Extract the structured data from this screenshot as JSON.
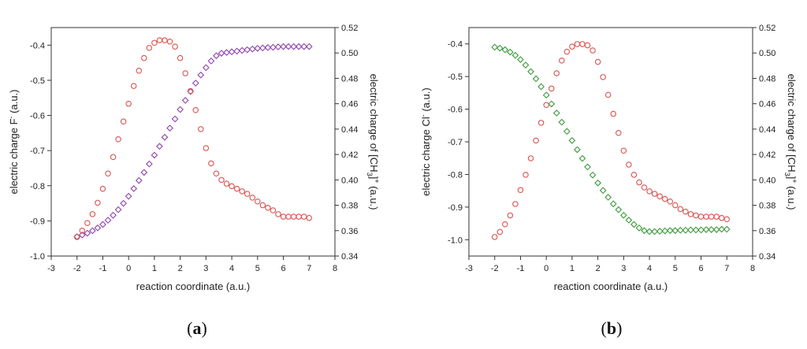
{
  "colors": {
    "red": "#d9534f",
    "purple": "#8e44ad",
    "green": "#3c9a3c",
    "axis": "#333333"
  },
  "chart_data": [
    {
      "type": "scatter",
      "panel_label": "a",
      "xlabel": "reaction coordinate (a.u.)",
      "ylabel_left": "electric charge F (a.u.)",
      "ylabel_left_sup": "-",
      "ylabel_right_prefix": "electric charge of [CH",
      "ylabel_right_sub": "3",
      "ylabel_right_suffix": "] (a.u.)",
      "ylabel_right_sup": "+",
      "xlim": [
        -3,
        8
      ],
      "ylim_left": [
        -1.0,
        -0.35
      ],
      "ylim_right": [
        0.34,
        0.52
      ],
      "xticks": [
        "-3",
        "-2",
        "-1",
        "0",
        "1",
        "2",
        "3",
        "4",
        "5",
        "6",
        "7",
        "8"
      ],
      "yticks_left": [
        "-1.0",
        "-0.9",
        "-0.8",
        "-0.7",
        "-0.6",
        "-0.5",
        "-0.4"
      ],
      "yticks_right": [
        "0.34",
        "0.36",
        "0.38",
        "0.40",
        "0.42",
        "0.44",
        "0.46",
        "0.48",
        "0.50",
        "0.52"
      ],
      "series": [
        {
          "axis": "left",
          "marker": "diamond",
          "color": "purple",
          "points": [
            [
              -2.0,
              -0.945
            ],
            [
              -1.8,
              -0.94
            ],
            [
              -1.6,
              -0.935
            ],
            [
              -1.4,
              -0.928
            ],
            [
              -1.2,
              -0.92
            ],
            [
              -1.0,
              -0.91
            ],
            [
              -0.8,
              -0.898
            ],
            [
              -0.6,
              -0.884
            ],
            [
              -0.4,
              -0.868
            ],
            [
              -0.2,
              -0.85
            ],
            [
              0.0,
              -0.83
            ],
            [
              0.2,
              -0.808
            ],
            [
              0.4,
              -0.785
            ],
            [
              0.6,
              -0.762
            ],
            [
              0.8,
              -0.738
            ],
            [
              1.0,
              -0.713
            ],
            [
              1.2,
              -0.688
            ],
            [
              1.4,
              -0.662
            ],
            [
              1.6,
              -0.636
            ],
            [
              1.8,
              -0.61
            ],
            [
              2.0,
              -0.583
            ],
            [
              2.2,
              -0.557
            ],
            [
              2.4,
              -0.532
            ],
            [
              2.6,
              -0.508
            ],
            [
              2.8,
              -0.485
            ],
            [
              3.0,
              -0.464
            ],
            [
              3.2,
              -0.445
            ],
            [
              3.4,
              -0.43
            ],
            [
              3.6,
              -0.423
            ],
            [
              3.8,
              -0.421
            ],
            [
              4.0,
              -0.419
            ],
            [
              4.2,
              -0.417
            ],
            [
              4.4,
              -0.415
            ],
            [
              4.6,
              -0.413
            ],
            [
              4.8,
              -0.411
            ],
            [
              5.0,
              -0.409
            ],
            [
              5.2,
              -0.408
            ],
            [
              5.4,
              -0.407
            ],
            [
              5.6,
              -0.406
            ],
            [
              5.8,
              -0.405
            ],
            [
              6.0,
              -0.404
            ],
            [
              6.2,
              -0.404
            ],
            [
              6.4,
              -0.404
            ],
            [
              6.6,
              -0.404
            ],
            [
              6.8,
              -0.404
            ],
            [
              7.0,
              -0.404
            ]
          ]
        },
        {
          "axis": "right",
          "marker": "circle",
          "color": "red",
          "points": [
            [
              -2.0,
              0.355
            ],
            [
              -1.8,
              0.36
            ],
            [
              -1.6,
              0.366
            ],
            [
              -1.4,
              0.373
            ],
            [
              -1.2,
              0.382
            ],
            [
              -1.0,
              0.393
            ],
            [
              -0.8,
              0.405
            ],
            [
              -0.6,
              0.418
            ],
            [
              -0.4,
              0.432
            ],
            [
              -0.2,
              0.446
            ],
            [
              0.0,
              0.46
            ],
            [
              0.2,
              0.474
            ],
            [
              0.4,
              0.486
            ],
            [
              0.6,
              0.496
            ],
            [
              0.8,
              0.504
            ],
            [
              1.0,
              0.508
            ],
            [
              1.2,
              0.51
            ],
            [
              1.4,
              0.51
            ],
            [
              1.6,
              0.509
            ],
            [
              1.8,
              0.505
            ],
            [
              2.0,
              0.496
            ],
            [
              2.2,
              0.484
            ],
            [
              2.4,
              0.47
            ],
            [
              2.6,
              0.455
            ],
            [
              2.8,
              0.44
            ],
            [
              3.0,
              0.425
            ],
            [
              3.2,
              0.413
            ],
            [
              3.4,
              0.405
            ],
            [
              3.6,
              0.4
            ],
            [
              3.8,
              0.397
            ],
            [
              4.0,
              0.395
            ],
            [
              4.2,
              0.393
            ],
            [
              4.4,
              0.391
            ],
            [
              4.6,
              0.389
            ],
            [
              4.8,
              0.386
            ],
            [
              5.0,
              0.383
            ],
            [
              5.2,
              0.38
            ],
            [
              5.4,
              0.378
            ],
            [
              5.6,
              0.376
            ],
            [
              5.8,
              0.373
            ],
            [
              6.0,
              0.371
            ],
            [
              6.2,
              0.371
            ],
            [
              6.4,
              0.371
            ],
            [
              6.6,
              0.371
            ],
            [
              6.8,
              0.371
            ],
            [
              7.0,
              0.37
            ]
          ]
        }
      ]
    },
    {
      "type": "scatter",
      "panel_label": "b",
      "xlabel": "reaction coordinate (a.u.)",
      "ylabel_left": "electric charge Cl (a.u.)",
      "ylabel_left_sup": "-",
      "ylabel_right_prefix": "electric charge of [CH",
      "ylabel_right_sub": "3",
      "ylabel_right_suffix": "] (a.u.)",
      "ylabel_right_sup": "+",
      "xlim": [
        -3,
        8
      ],
      "ylim_left": [
        -1.05,
        -0.35
      ],
      "ylim_right": [
        0.34,
        0.52
      ],
      "xticks": [
        "-3",
        "-2",
        "-1",
        "0",
        "1",
        "2",
        "3",
        "4",
        "5",
        "6",
        "7",
        "8"
      ],
      "yticks_left": [
        "-1.0",
        "-0.9",
        "-0.8",
        "-0.7",
        "-0.6",
        "-0.5",
        "-0.4"
      ],
      "yticks_right": [
        "0.34",
        "0.36",
        "0.38",
        "0.40",
        "0.42",
        "0.44",
        "0.46",
        "0.48",
        "0.50",
        "0.52"
      ],
      "series": [
        {
          "axis": "left",
          "marker": "diamond",
          "color": "green",
          "points": [
            [
              -2.0,
              -0.41
            ],
            [
              -1.8,
              -0.413
            ],
            [
              -1.6,
              -0.418
            ],
            [
              -1.4,
              -0.425
            ],
            [
              -1.2,
              -0.435
            ],
            [
              -1.0,
              -0.448
            ],
            [
              -0.8,
              -0.465
            ],
            [
              -0.6,
              -0.485
            ],
            [
              -0.4,
              -0.507
            ],
            [
              -0.2,
              -0.531
            ],
            [
              0.0,
              -0.557
            ],
            [
              0.2,
              -0.584
            ],
            [
              0.4,
              -0.612
            ],
            [
              0.6,
              -0.64
            ],
            [
              0.8,
              -0.668
            ],
            [
              1.0,
              -0.696
            ],
            [
              1.2,
              -0.724
            ],
            [
              1.4,
              -0.751
            ],
            [
              1.6,
              -0.777
            ],
            [
              1.8,
              -0.802
            ],
            [
              2.0,
              -0.826
            ],
            [
              2.2,
              -0.849
            ],
            [
              2.4,
              -0.87
            ],
            [
              2.6,
              -0.89
            ],
            [
              2.8,
              -0.908
            ],
            [
              3.0,
              -0.925
            ],
            [
              3.2,
              -0.94
            ],
            [
              3.4,
              -0.953
            ],
            [
              3.6,
              -0.964
            ],
            [
              3.8,
              -0.972
            ],
            [
              4.0,
              -0.975
            ],
            [
              4.2,
              -0.975
            ],
            [
              4.4,
              -0.974
            ],
            [
              4.6,
              -0.973
            ],
            [
              4.8,
              -0.972
            ],
            [
              5.0,
              -0.972
            ],
            [
              5.2,
              -0.971
            ],
            [
              5.4,
              -0.971
            ],
            [
              5.6,
              -0.97
            ],
            [
              5.8,
              -0.97
            ],
            [
              6.0,
              -0.97
            ],
            [
              6.2,
              -0.969
            ],
            [
              6.4,
              -0.969
            ],
            [
              6.6,
              -0.969
            ],
            [
              6.8,
              -0.968
            ],
            [
              7.0,
              -0.968
            ]
          ]
        },
        {
          "axis": "right",
          "marker": "circle",
          "color": "red",
          "points": [
            [
              -2.0,
              0.355
            ],
            [
              -1.8,
              0.359
            ],
            [
              -1.6,
              0.365
            ],
            [
              -1.4,
              0.372
            ],
            [
              -1.2,
              0.381
            ],
            [
              -1.0,
              0.392
            ],
            [
              -0.8,
              0.404
            ],
            [
              -0.6,
              0.417
            ],
            [
              -0.4,
              0.431
            ],
            [
              -0.2,
              0.445
            ],
            [
              0.0,
              0.459
            ],
            [
              0.2,
              0.472
            ],
            [
              0.4,
              0.484
            ],
            [
              0.6,
              0.494
            ],
            [
              0.8,
              0.501
            ],
            [
              1.0,
              0.505
            ],
            [
              1.2,
              0.507
            ],
            [
              1.4,
              0.507
            ],
            [
              1.6,
              0.506
            ],
            [
              1.8,
              0.502
            ],
            [
              2.0,
              0.493
            ],
            [
              2.2,
              0.481
            ],
            [
              2.4,
              0.467
            ],
            [
              2.6,
              0.452
            ],
            [
              2.8,
              0.437
            ],
            [
              3.0,
              0.423
            ],
            [
              3.2,
              0.412
            ],
            [
              3.4,
              0.404
            ],
            [
              3.6,
              0.398
            ],
            [
              3.8,
              0.394
            ],
            [
              4.0,
              0.391
            ],
            [
              4.2,
              0.389
            ],
            [
              4.4,
              0.387
            ],
            [
              4.6,
              0.385
            ],
            [
              4.8,
              0.383
            ],
            [
              5.0,
              0.38
            ],
            [
              5.2,
              0.377
            ],
            [
              5.4,
              0.375
            ],
            [
              5.6,
              0.373
            ],
            [
              5.8,
              0.372
            ],
            [
              6.0,
              0.371
            ],
            [
              6.2,
              0.371
            ],
            [
              6.4,
              0.371
            ],
            [
              6.6,
              0.371
            ],
            [
              6.8,
              0.37
            ],
            [
              7.0,
              0.369
            ]
          ]
        }
      ]
    }
  ]
}
